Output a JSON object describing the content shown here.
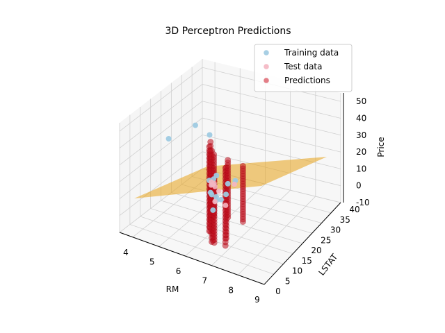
{
  "chart_data": {
    "type": "scatter3d",
    "title": "3D Perceptron Predictions",
    "xlabel": "RM",
    "ylabel": "LSTAT",
    "zlabel": "Price",
    "xlim": [
      3.5,
      9.0
    ],
    "ylim": [
      0,
      40
    ],
    "zlim": [
      -10,
      55
    ],
    "x_ticks": [
      4,
      5,
      6,
      7,
      8,
      9
    ],
    "y_ticks": [
      0,
      5,
      10,
      15,
      20,
      25,
      30,
      35,
      40
    ],
    "z_ticks": [
      -10,
      0,
      10,
      20,
      30,
      40,
      50
    ],
    "grid": true,
    "legend_position": "top-right",
    "legend": [
      {
        "label": "Training data",
        "color": "#9ecae1"
      },
      {
        "label": "Test data",
        "color": "#f4b6c2"
      },
      {
        "label": "Predictions",
        "color": "#e0707a"
      }
    ],
    "surface_color": "#e8a317",
    "prediction_columns": [
      {
        "x": 6.0,
        "y": 12,
        "zmin": -8,
        "zmax": 42
      },
      {
        "x": 6.2,
        "y": 10,
        "zmin": -5,
        "zmax": 48
      },
      {
        "x": 6.4,
        "y": 8,
        "zmin": -8,
        "zmax": 46
      },
      {
        "x": 6.6,
        "y": 6,
        "zmin": -4,
        "zmax": 38
      },
      {
        "x": 5.8,
        "y": 15,
        "zmin": -10,
        "zmax": 35
      },
      {
        "x": 6.5,
        "y": 14,
        "zmin": -12,
        "zmax": 30
      },
      {
        "x": 7.0,
        "y": 7,
        "zmin": -6,
        "zmax": 40
      },
      {
        "x": 5.6,
        "y": 18,
        "zmin": -10,
        "zmax": 28
      },
      {
        "x": 6.1,
        "y": 20,
        "zmin": -8,
        "zmax": 26
      },
      {
        "x": 6.8,
        "y": 4,
        "zmin": -2,
        "zmax": 36
      },
      {
        "x": 5.4,
        "y": 22,
        "zmin": -12,
        "zmax": 24
      },
      {
        "x": 6.3,
        "y": 25,
        "zmin": -15,
        "zmax": 18
      }
    ],
    "training_points": [
      {
        "x": 3.8,
        "y": 20,
        "z": 28
      },
      {
        "x": 4.2,
        "y": 28,
        "z": 30
      },
      {
        "x": 4.6,
        "y": 30,
        "z": 24
      },
      {
        "x": 6.0,
        "y": 12,
        "z": 22
      },
      {
        "x": 6.2,
        "y": 10,
        "z": 18
      },
      {
        "x": 5.9,
        "y": 15,
        "z": 16
      },
      {
        "x": 6.4,
        "y": 8,
        "z": 20
      },
      {
        "x": 6.6,
        "y": 6,
        "z": 14
      },
      {
        "x": 5.7,
        "y": 18,
        "z": 15
      },
      {
        "x": 6.1,
        "y": 20,
        "z": 12
      },
      {
        "x": 6.8,
        "y": 5,
        "z": 24
      },
      {
        "x": 6.3,
        "y": 14,
        "z": 10
      },
      {
        "x": 5.5,
        "y": 22,
        "z": 12
      },
      {
        "x": 7.1,
        "y": 6,
        "z": 26
      },
      {
        "x": 6.0,
        "y": 25,
        "z": 8
      },
      {
        "x": 6.5,
        "y": 9,
        "z": 16
      }
    ],
    "test_points": [
      {
        "x": 6.0,
        "y": 13,
        "z": 20
      },
      {
        "x": 6.3,
        "y": 9,
        "z": 24
      },
      {
        "x": 5.8,
        "y": 17,
        "z": 14
      },
      {
        "x": 6.6,
        "y": 7,
        "z": 18
      },
      {
        "x": 6.2,
        "y": 22,
        "z": 10
      },
      {
        "x": 5.6,
        "y": 20,
        "z": 8
      },
      {
        "x": 6.9,
        "y": 5,
        "z": 28
      },
      {
        "x": 6.4,
        "y": 15,
        "z": 6
      }
    ]
  }
}
